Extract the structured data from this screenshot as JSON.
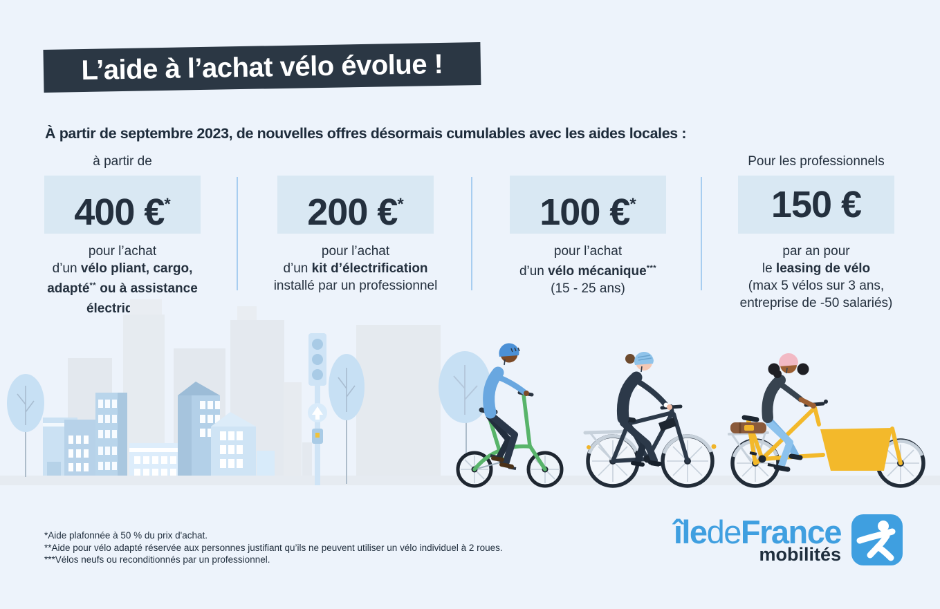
{
  "colors": {
    "background": "#edf3fb",
    "banner_bg": "#2b3744",
    "text_dark": "#24303e",
    "price_box_bg": "#d9e8f3",
    "divider_blue": "#a7cdf0",
    "brand_blue": "#3f9fe0",
    "bike_green": "#58b46a",
    "bike_navy": "#2c3949",
    "bike_cargo_yellow": "#f3b92b"
  },
  "banner": {
    "title": "L’aide à l’achat vélo évolue !"
  },
  "intro": {
    "text": "À partir de septembre 2023, de nouvelles offres désormais cumulables avec les aides locales :"
  },
  "offers": [
    {
      "top_label": "à partir de",
      "price": [
        {
          "t": "400 €"
        },
        {
          "t": "*",
          "sup": true
        }
      ],
      "desc": [
        [
          {
            "t": "pour l’achat"
          }
        ],
        [
          {
            "t": "d’un "
          },
          {
            "t": "vélo pliant, cargo,",
            "b": true
          }
        ],
        [
          {
            "t": "adapté",
            "b": true
          },
          {
            "t": "**",
            "b": true,
            "sup": true
          },
          {
            "t": " ou à assistance",
            "b": true
          }
        ],
        [
          {
            "t": "électrique",
            "b": true
          },
          {
            "t": "***",
            "b": true,
            "sup": true
          }
        ]
      ]
    },
    {
      "top_label": "",
      "price": [
        {
          "t": "200 €"
        },
        {
          "t": "*",
          "sup": true
        }
      ],
      "desc": [
        [
          {
            "t": "pour l’achat"
          }
        ],
        [
          {
            "t": "d’un "
          },
          {
            "t": "kit d’électrification",
            "b": true
          }
        ],
        [
          {
            "t": "installé par un professionnel"
          }
        ]
      ]
    },
    {
      "top_label": "",
      "price": [
        {
          "t": "100 €"
        },
        {
          "t": "*",
          "sup": true
        }
      ],
      "desc": [
        [
          {
            "t": "pour l’achat"
          }
        ],
        [
          {
            "t": "d’un "
          },
          {
            "t": "vélo mécanique",
            "b": true
          },
          {
            "t": "***",
            "b": true,
            "sup": true
          }
        ],
        [
          {
            "t": "(15 - 25 ans)"
          }
        ]
      ]
    },
    {
      "top_label": "Pour les professionnels",
      "price": [
        {
          "t": "150 €"
        }
      ],
      "desc": [
        [
          {
            "t": "par an pour"
          }
        ],
        [
          {
            "t": "le "
          },
          {
            "t": "leasing de vélo",
            "b": true
          }
        ],
        [
          {
            "t": "(max 5 vélos sur 3 ans,"
          }
        ],
        [
          {
            "t": "entreprise de -50 salariés)"
          }
        ]
      ]
    }
  ],
  "footnotes": [
    "*Aide plafonnée à 50 % du prix d'achat.",
    "**Aide pour vélo adapté réservée aux personnes justifiant qu’ils ne peuvent utiliser un vélo individuel à 2 roues.",
    "***Vélos neufs ou reconditionnés par un professionnel."
  ],
  "logo": {
    "brand": [
      {
        "t": "île",
        "b": true
      },
      {
        "t": "de"
      },
      {
        "t": "France",
        "b": true
      }
    ],
    "subtitle": "mobilités"
  }
}
